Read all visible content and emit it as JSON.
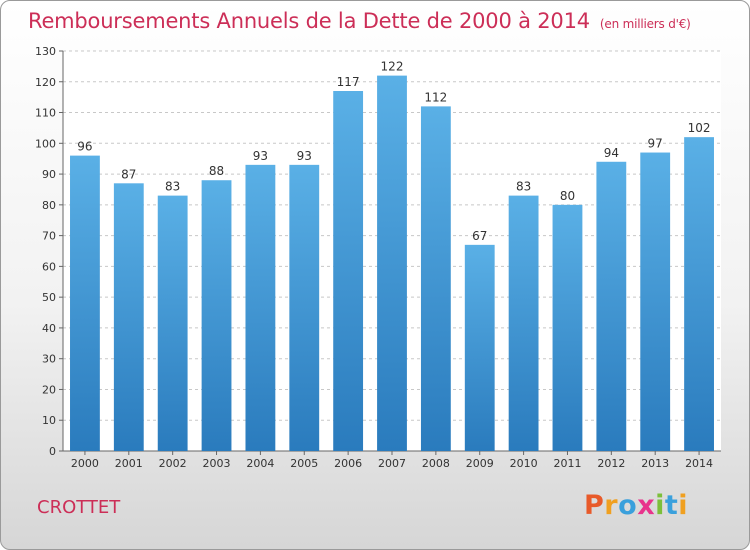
{
  "chart_data": {
    "type": "bar",
    "title": "Remboursements Annuels de la Dette de 2000 à 2014",
    "subtitle": "(en milliers d'€)",
    "categories": [
      "2000",
      "2001",
      "2002",
      "2003",
      "2004",
      "2005",
      "2006",
      "2007",
      "2008",
      "2009",
      "2010",
      "2011",
      "2012",
      "2013",
      "2014"
    ],
    "values": [
      96,
      87,
      83,
      88,
      93,
      93,
      117,
      122,
      112,
      67,
      83,
      80,
      94,
      97,
      102
    ],
    "ylim": [
      0,
      130
    ],
    "yticks": [
      0,
      10,
      20,
      30,
      40,
      50,
      60,
      70,
      80,
      90,
      100,
      110,
      120,
      130
    ],
    "grid": true,
    "colors": {
      "bar_top": "#5ab0e6",
      "bar_bottom": "#2a7bbd",
      "title": "#cc2e57"
    }
  },
  "footer": {
    "place_name": "CROTTET",
    "logo_text": "Proxiti",
    "logo_colors": [
      "#e85a2a",
      "#f0a020",
      "#3aa0dc",
      "#e8348c",
      "#7cbf3a",
      "#3aa0dc",
      "#f0a020"
    ]
  }
}
